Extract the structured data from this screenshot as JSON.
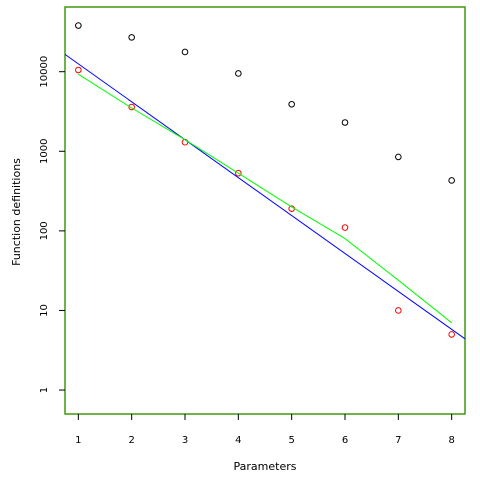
{
  "chart_data": {
    "type": "scatter",
    "title": "",
    "xlabel": "Parameters",
    "ylabel": "Function definitions",
    "xlim": [
      0.75,
      8.25
    ],
    "ylim": [
      0.5,
      65000
    ],
    "log_y": true,
    "grid": false,
    "frame_color": "#3e9a0e",
    "x_ticks": [
      "1",
      "2",
      "3",
      "4",
      "5",
      "6",
      "7",
      "8"
    ],
    "y_ticks": [
      "1",
      "10",
      "100",
      "1000",
      "10000"
    ],
    "series": [
      {
        "kind": "points",
        "color": "#000000",
        "x": [
          1,
          2,
          3,
          4,
          5,
          6,
          7,
          8
        ],
        "y": [
          38000,
          27000,
          17700,
          9500,
          3900,
          2300,
          850,
          430
        ]
      },
      {
        "kind": "points",
        "color": "#ff0000",
        "x": [
          1,
          2,
          3,
          4,
          5,
          6,
          7,
          8
        ],
        "y": [
          10500,
          3600,
          1300,
          530,
          190,
          110,
          10,
          5
        ]
      },
      {
        "kind": "line",
        "color": "#0000ff",
        "x": [
          0.75,
          8.25
        ],
        "y": [
          16500,
          4.4
        ]
      },
      {
        "kind": "line",
        "color": "#00ff00",
        "x": [
          1,
          2,
          3,
          4,
          5,
          6,
          7,
          8
        ],
        "y": [
          9300,
          3500,
          1400,
          530,
          200,
          80,
          24,
          7
        ]
      }
    ]
  }
}
